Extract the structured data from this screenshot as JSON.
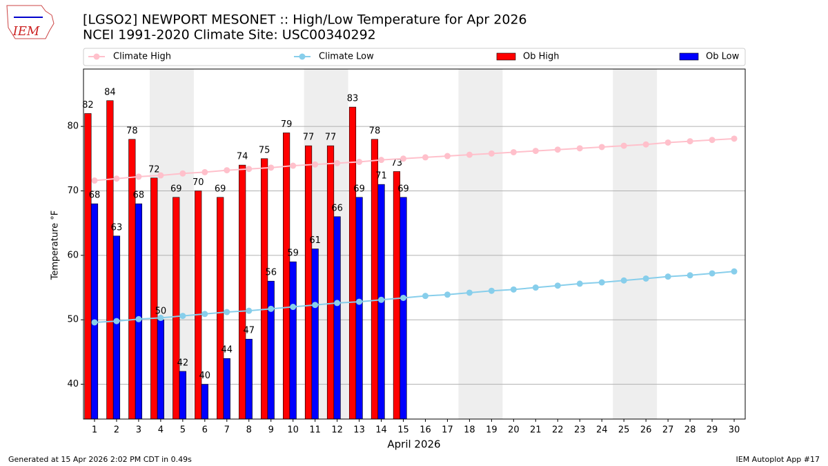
{
  "chart_data": {
    "type": "bar",
    "title": "[LGSO2] NEWPORT MESONET :: High/Low Temperature for Apr 2026",
    "subtitle": "NCEI 1991-2020 Climate Site: USC00340292",
    "logo_text": "IEM",
    "xlabel": "April 2026",
    "ylabel": "Temperature °F",
    "footer_left": "Generated at 15 Apr 2026 2:02 PM CDT in 0.49s",
    "footer_right": "IEM Autoplot App #17",
    "x": [
      1,
      2,
      3,
      4,
      5,
      6,
      7,
      8,
      9,
      10,
      11,
      12,
      13,
      14,
      15,
      16,
      17,
      18,
      19,
      20,
      21,
      22,
      23,
      24,
      25,
      26,
      27,
      28,
      29,
      30
    ],
    "xlim": [
      0.5,
      30.5
    ],
    "xticks": [
      1,
      2,
      3,
      4,
      5,
      6,
      7,
      8,
      9,
      10,
      11,
      12,
      13,
      14,
      15,
      16,
      17,
      18,
      19,
      20,
      21,
      22,
      23,
      24,
      25,
      26,
      27,
      28,
      29,
      30
    ],
    "ylim": [
      34.6,
      88.9
    ],
    "yticks": [
      40,
      50,
      60,
      70,
      80
    ],
    "grid": true,
    "shaded_x": [
      [
        3.5,
        5.5
      ],
      [
        10.5,
        12.5
      ],
      [
        17.5,
        19.5
      ],
      [
        24.5,
        26.5
      ]
    ],
    "series": [
      {
        "name": "Climate High",
        "type": "line",
        "color": "#ffc0cb",
        "values": [
          71.6,
          71.9,
          72.2,
          72.4,
          72.7,
          72.9,
          73.2,
          73.4,
          73.6,
          73.9,
          74.1,
          74.3,
          74.5,
          74.8,
          75.0,
          75.2,
          75.4,
          75.6,
          75.8,
          76.0,
          76.2,
          76.4,
          76.6,
          76.8,
          77.0,
          77.2,
          77.5,
          77.7,
          77.9,
          78.1
        ]
      },
      {
        "name": "Climate Low",
        "type": "line",
        "color": "#87ceeb",
        "values": [
          49.6,
          49.8,
          50.1,
          50.3,
          50.6,
          50.9,
          51.2,
          51.4,
          51.7,
          52.0,
          52.3,
          52.6,
          52.8,
          53.1,
          53.4,
          53.7,
          53.9,
          54.2,
          54.5,
          54.7,
          55.0,
          55.3,
          55.6,
          55.8,
          56.1,
          56.4,
          56.7,
          56.9,
          57.2,
          57.5
        ]
      },
      {
        "name": "Ob High",
        "type": "bar",
        "color": "#ff0000",
        "values": [
          82,
          84,
          78,
          72,
          69,
          70,
          69,
          74,
          75,
          79,
          77,
          77,
          83,
          78,
          73,
          null,
          null,
          null,
          null,
          null,
          null,
          null,
          null,
          null,
          null,
          null,
          null,
          null,
          null,
          null
        ]
      },
      {
        "name": "Ob Low",
        "type": "bar",
        "color": "#0000ff",
        "values": [
          68,
          63,
          68,
          50,
          42,
          40,
          44,
          47,
          56,
          59,
          61,
          66,
          69,
          71,
          69,
          null,
          null,
          null,
          null,
          null,
          null,
          null,
          null,
          null,
          null,
          null,
          null,
          null,
          null,
          null
        ]
      }
    ]
  }
}
